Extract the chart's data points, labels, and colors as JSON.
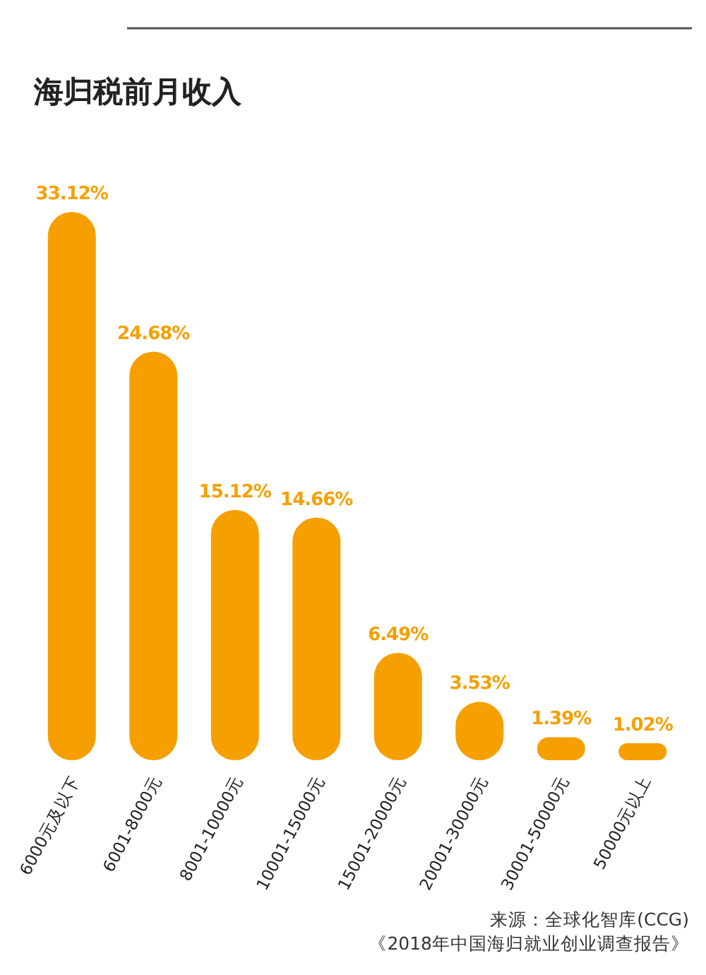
{
  "chart_data": {
    "type": "bar",
    "title": "海归税前月收入",
    "categories": [
      "6000元及以下",
      "6001-8000元",
      "8001-10000元",
      "10001-15000元",
      "15001-20000元",
      "20001-30000元",
      "30001-50000元",
      "50000元以上"
    ],
    "values": [
      33.12,
      24.68,
      15.12,
      14.66,
      6.49,
      3.53,
      1.39,
      1.02
    ],
    "value_labels": [
      "33.12%",
      "24.68%",
      "15.12%",
      "14.66%",
      "6.49%",
      "3.53%",
      "1.39%",
      "1.02%"
    ],
    "color": "#f5a000",
    "ylim": [
      0,
      33.12
    ],
    "tick_labels": "x",
    "annotations": [
      "来源：全球化智库(CCG)",
      "《2018年中国海归就业创业调查报告》"
    ]
  }
}
